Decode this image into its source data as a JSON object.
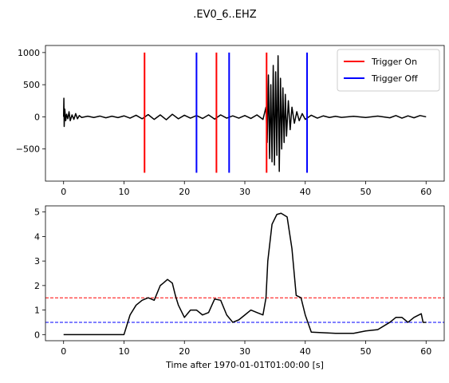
{
  "title": ".EV0_6..EHZ",
  "chart_data": [
    {
      "type": "line",
      "xlim": [
        -3,
        63
      ],
      "xticks": [
        0,
        10,
        20,
        30,
        40,
        50,
        60
      ],
      "ylim": [
        -1000,
        1110
      ],
      "yticks": [
        {
          "value": -500,
          "label": "−500"
        },
        0,
        500,
        1000
      ],
      "legend": "upper right",
      "series": [
        {
          "style": "line",
          "color": "#000000",
          "x": [
            0,
            0.05,
            0.1,
            0.2,
            0.35,
            0.5,
            0.7,
            0.9,
            1.1,
            1.4,
            1.7,
            2,
            2.3,
            2.6,
            3,
            4,
            5,
            6,
            7,
            8,
            9,
            10,
            11,
            12,
            13,
            14,
            15,
            16,
            17,
            18,
            19,
            20,
            21,
            22,
            23,
            24,
            25,
            26,
            27,
            28,
            29,
            30,
            31,
            32,
            33,
            33.5,
            33.7,
            33.9,
            34.1,
            34.3,
            34.5,
            34.7,
            34.9,
            35.1,
            35.3,
            35.5,
            35.7,
            35.9,
            36.1,
            36.3,
            36.5,
            36.7,
            36.9,
            37.2,
            37.5,
            37.8,
            38.2,
            38.6,
            39,
            39.5,
            40,
            41,
            42,
            43,
            44,
            45,
            46,
            48,
            50,
            52,
            54,
            55,
            56,
            57,
            58,
            59,
            60
          ],
          "values": [
            0,
            290,
            -150,
            120,
            -60,
            40,
            -30,
            80,
            -60,
            30,
            -40,
            50,
            -30,
            20,
            -10,
            10,
            -10,
            12,
            -15,
            10,
            -12,
            15,
            -20,
            25,
            -30,
            35,
            -40,
            30,
            -45,
            40,
            -30,
            25,
            -20,
            20,
            -25,
            30,
            -35,
            30,
            -20,
            15,
            -20,
            20,
            -25,
            30,
            -40,
            150,
            -400,
            650,
            -650,
            500,
            -700,
            800,
            -750,
            700,
            -600,
            950,
            -850,
            600,
            -500,
            450,
            -400,
            350,
            -300,
            250,
            -200,
            150,
            -100,
            80,
            -60,
            50,
            -40,
            25,
            -20,
            15,
            -10,
            8,
            -8,
            8,
            -10,
            12,
            -15,
            20,
            -20,
            15,
            -15,
            20,
            0
          ]
        },
        {
          "style": "vlines",
          "name": "Trigger On",
          "color": "#ff0000",
          "x": [
            13.4,
            25.3,
            33.6
          ],
          "ymin": -870,
          "ymax": 1000
        },
        {
          "style": "vlines",
          "name": "Trigger Off",
          "color": "#0000ff",
          "x": [
            22,
            27.4,
            40.3
          ],
          "ymin": -870,
          "ymax": 1000
        }
      ]
    },
    {
      "type": "line",
      "xlabel": "Time after 1970-01-01T01:00:00 [s]",
      "xlim": [
        -3,
        63
      ],
      "xticks": [
        0,
        10,
        20,
        30,
        40,
        50,
        60
      ],
      "ylim": [
        -0.25,
        5.25
      ],
      "yticks": [
        0,
        1,
        2,
        3,
        4,
        5
      ],
      "hlines": [
        {
          "value": 1.5,
          "color": "#ff0000"
        },
        {
          "value": 0.5,
          "color": "#0000ff"
        }
      ],
      "series": [
        {
          "style": "line",
          "color": "#000000",
          "x": [
            0,
            10,
            10.5,
            11,
            12,
            13,
            14,
            15,
            16,
            16.5,
            17.2,
            18,
            18.5,
            19,
            20,
            21,
            22,
            23,
            24,
            25,
            26,
            27,
            28,
            29,
            30,
            31,
            32,
            33,
            33.5,
            33.8,
            34.5,
            35.3,
            36,
            37,
            37.8,
            38.5,
            39.3,
            40,
            41,
            45,
            48,
            50,
            52,
            54,
            55,
            56,
            57,
            58,
            59.2,
            59.5,
            60
          ],
          "values": [
            0,
            0,
            0.4,
            0.8,
            1.2,
            1.4,
            1.5,
            1.4,
            2.0,
            2.1,
            2.25,
            2.1,
            1.6,
            1.2,
            0.7,
            1.0,
            1.0,
            0.8,
            0.9,
            1.45,
            1.4,
            0.8,
            0.5,
            0.6,
            0.8,
            1.0,
            0.9,
            0.8,
            1.5,
            3.0,
            4.5,
            4.9,
            4.95,
            4.8,
            3.5,
            1.6,
            1.5,
            0.8,
            0.1,
            0.05,
            0.05,
            0.15,
            0.2,
            0.5,
            0.7,
            0.7,
            0.5,
            0.7,
            0.85,
            0.5,
            0.5
          ]
        }
      ]
    }
  ]
}
